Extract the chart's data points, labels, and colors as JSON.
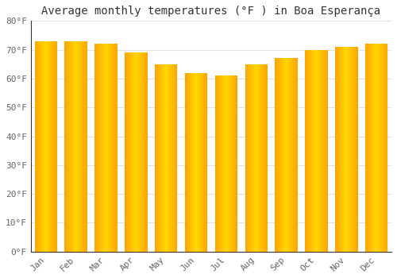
{
  "title": "Average monthly temperatures (°F ) in Boa Esperança",
  "categories": [
    "Jan",
    "Feb",
    "Mar",
    "Apr",
    "May",
    "Jun",
    "Jul",
    "Aug",
    "Sep",
    "Oct",
    "Nov",
    "Dec"
  ],
  "values": [
    73,
    73,
    72,
    69,
    65,
    62,
    61,
    65,
    67,
    70,
    71,
    72
  ],
  "bar_color_center": "#FFD700",
  "bar_color_edge": "#FFA500",
  "ylim": [
    0,
    80
  ],
  "yticks": [
    0,
    10,
    20,
    30,
    40,
    50,
    60,
    70,
    80
  ],
  "ytick_labels": [
    "0°F",
    "10°F",
    "20°F",
    "30°F",
    "40°F",
    "50°F",
    "60°F",
    "70°F",
    "80°F"
  ],
  "background_color": "#FFFFFF",
  "grid_color": "#E0E0E0",
  "title_fontsize": 10,
  "tick_fontsize": 8,
  "bar_width": 0.75,
  "bar_gap_color": "#FFFFFF"
}
